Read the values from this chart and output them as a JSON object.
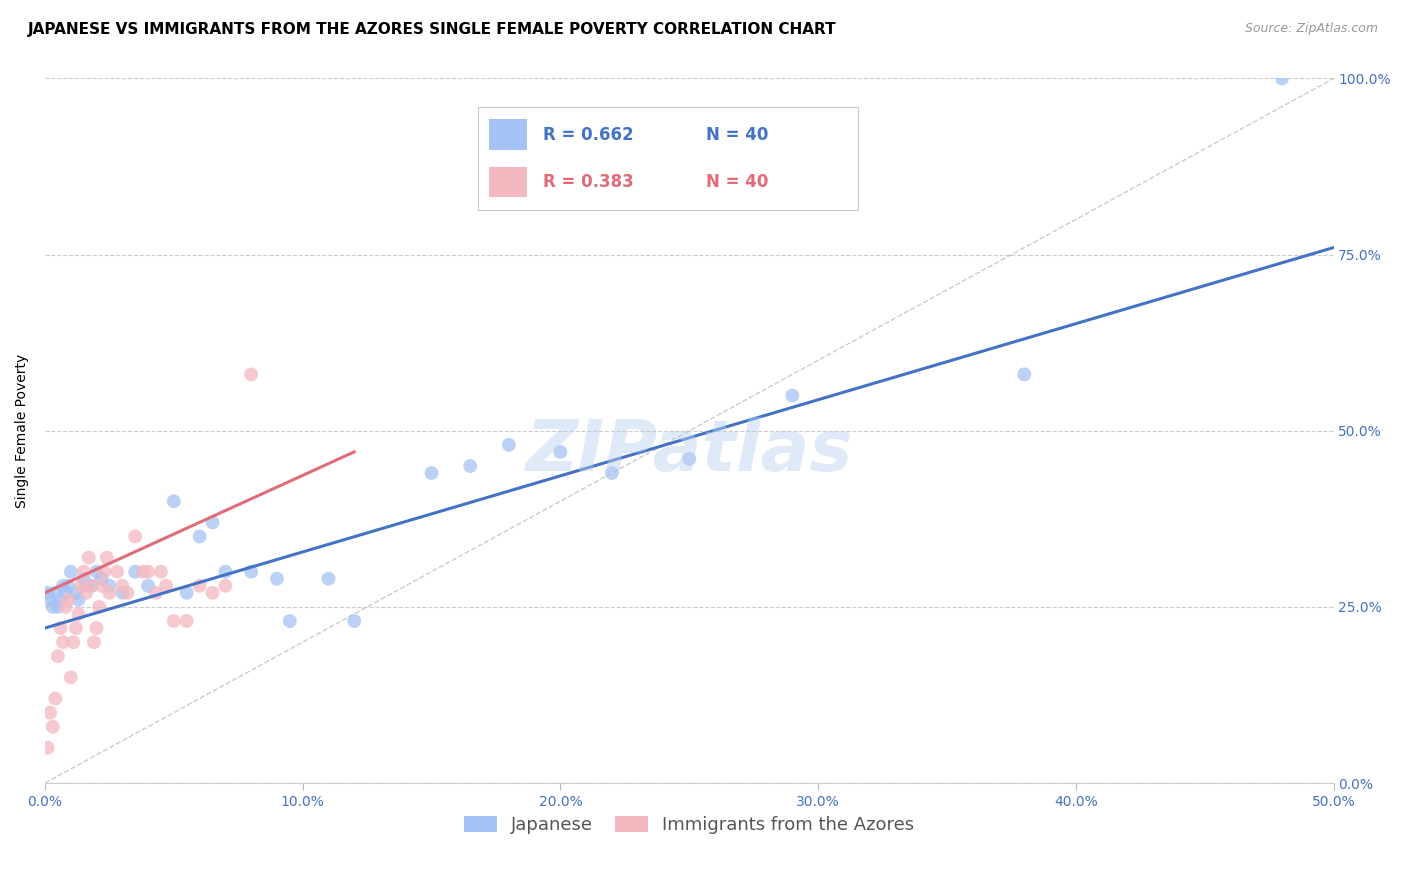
{
  "title": "JAPANESE VS IMMIGRANTS FROM THE AZORES SINGLE FEMALE POVERTY CORRELATION CHART",
  "source": "Source: ZipAtlas.com",
  "ylabel": "Single Female Poverty",
  "xlabel_ticks": [
    "0.0%",
    "10.0%",
    "20.0%",
    "30.0%",
    "40.0%",
    "50.0%"
  ],
  "ylabel_ticks_right": [
    "0.0%",
    "25.0%",
    "50.0%",
    "75.0%",
    "100.0%"
  ],
  "xlim": [
    0,
    0.5
  ],
  "ylim": [
    0,
    1.0
  ],
  "legend_label1": "Japanese",
  "legend_label2": "Immigrants from the Azores",
  "legend_r1": "R = 0.662",
  "legend_n1": "N = 40",
  "legend_r2": "R = 0.383",
  "legend_n2": "N = 40",
  "color_blue": "#a4c2f4",
  "color_pink": "#f4b8c1",
  "color_blue_line": "#4472c4",
  "color_pink_line": "#e06c7a",
  "color_diagonal": "#aaaaaa",
  "watermark": "ZIPatlas",
  "japanese_x": [
    0.001,
    0.002,
    0.003,
    0.004,
    0.005,
    0.006,
    0.007,
    0.008,
    0.009,
    0.01,
    0.012,
    0.013,
    0.015,
    0.016,
    0.018,
    0.02,
    0.022,
    0.025,
    0.03,
    0.035,
    0.04,
    0.05,
    0.055,
    0.06,
    0.065,
    0.07,
    0.08,
    0.09,
    0.095,
    0.11,
    0.12,
    0.15,
    0.165,
    0.18,
    0.2,
    0.22,
    0.25,
    0.29,
    0.38,
    0.48
  ],
  "japanese_y": [
    0.27,
    0.26,
    0.25,
    0.27,
    0.25,
    0.26,
    0.28,
    0.27,
    0.28,
    0.3,
    0.27,
    0.26,
    0.29,
    0.28,
    0.28,
    0.3,
    0.29,
    0.28,
    0.27,
    0.3,
    0.28,
    0.4,
    0.27,
    0.35,
    0.37,
    0.3,
    0.3,
    0.29,
    0.23,
    0.29,
    0.23,
    0.44,
    0.45,
    0.48,
    0.47,
    0.44,
    0.46,
    0.55,
    0.58,
    1.0
  ],
  "azores_x": [
    0.001,
    0.002,
    0.003,
    0.004,
    0.005,
    0.006,
    0.007,
    0.008,
    0.009,
    0.01,
    0.011,
    0.012,
    0.013,
    0.014,
    0.015,
    0.016,
    0.017,
    0.018,
    0.019,
    0.02,
    0.021,
    0.022,
    0.023,
    0.024,
    0.025,
    0.028,
    0.03,
    0.032,
    0.035,
    0.038,
    0.04,
    0.043,
    0.045,
    0.047,
    0.05,
    0.055,
    0.06,
    0.065,
    0.07,
    0.08
  ],
  "azores_y": [
    0.05,
    0.1,
    0.08,
    0.12,
    0.18,
    0.22,
    0.2,
    0.25,
    0.26,
    0.15,
    0.2,
    0.22,
    0.24,
    0.28,
    0.3,
    0.27,
    0.32,
    0.28,
    0.2,
    0.22,
    0.25,
    0.28,
    0.3,
    0.32,
    0.27,
    0.3,
    0.28,
    0.27,
    0.35,
    0.3,
    0.3,
    0.27,
    0.3,
    0.28,
    0.23,
    0.23,
    0.28,
    0.27,
    0.28,
    0.58
  ],
  "title_fontsize": 11,
  "source_fontsize": 9,
  "axis_label_fontsize": 10,
  "tick_fontsize": 10,
  "legend_fontsize": 13,
  "watermark_fontsize": 52,
  "blue_line_x0": 0.0,
  "blue_line_y0": 0.22,
  "blue_line_x1": 0.5,
  "blue_line_y1": 0.76,
  "pink_line_x0": 0.0,
  "pink_line_y0": 0.27,
  "pink_line_x1": 0.12,
  "pink_line_y1": 0.47
}
